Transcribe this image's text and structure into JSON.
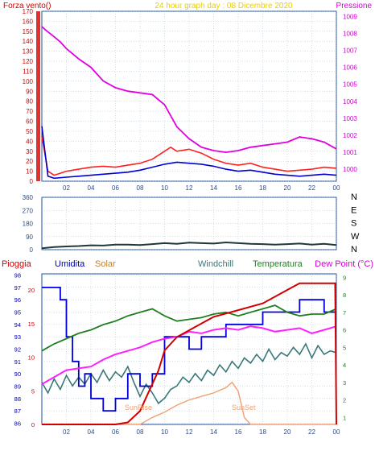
{
  "colors": {
    "frame": "#1e4fa0",
    "grid": "#8ab0c8",
    "wind_gust": "#ff2020",
    "wind_avg": "#0000d0",
    "pressure": "#e000e0",
    "wind_dir": "#203838",
    "humidity": "#0000d8",
    "rain": "#d00000",
    "temperature": "#208020",
    "windchill": "#3a7878",
    "dewpoint": "#ff20ff",
    "solar": "#f0a070",
    "title_yellow": "#e8d000"
  },
  "chart_data": [
    {
      "type": "line",
      "title": "24 hour graph day : 08 Dicembre 2020",
      "left_label": "Forza vento()",
      "right_label": "Pressione",
      "x_ticks": [
        "02",
        "04",
        "06",
        "08",
        "10",
        "12",
        "14",
        "16",
        "18",
        "20",
        "22",
        "00"
      ],
      "left_ticks": [
        "0",
        "10",
        "20",
        "30",
        "40",
        "50",
        "60",
        "70",
        "80",
        "90",
        "100",
        "110",
        "120",
        "130",
        "140",
        "150",
        "160",
        "170"
      ],
      "right_ticks": [
        "1000",
        "1001",
        "1002",
        "1003",
        "1004",
        "1005",
        "1006",
        "1007",
        "1008",
        "1009"
      ],
      "xlim": [
        0,
        24
      ],
      "ylim_left": [
        0,
        170
      ],
      "ylim_right": [
        999.3,
        1009.3
      ],
      "series": [
        {
          "key": "gust",
          "x": [
            0,
            0.5,
            1,
            1.5,
            2,
            3,
            4,
            5,
            6,
            7,
            8,
            9,
            10,
            10.5,
            11,
            12,
            12.5,
            13,
            14,
            15,
            16,
            17,
            18,
            19,
            20,
            21,
            22,
            23,
            24
          ],
          "y": [
            45,
            10,
            6,
            8,
            10,
            12,
            14,
            15,
            14,
            16,
            18,
            22,
            30,
            34,
            30,
            32,
            30,
            28,
            22,
            18,
            16,
            18,
            14,
            12,
            10,
            11,
            12,
            14,
            13
          ]
        },
        {
          "key": "avg",
          "x": [
            0,
            0.5,
            1,
            2,
            3,
            4,
            5,
            6,
            7,
            8,
            9,
            10,
            11,
            12,
            13,
            14,
            15,
            16,
            17,
            18,
            19,
            20,
            21,
            22,
            23,
            24
          ],
          "y": [
            55,
            5,
            3,
            4,
            5,
            6,
            7,
            8,
            9,
            11,
            14,
            17,
            19,
            18,
            17,
            15,
            12,
            10,
            11,
            9,
            7,
            6,
            5,
            6,
            7,
            6
          ]
        },
        {
          "key": "pressure",
          "x": [
            0,
            0.3,
            1,
            1.5,
            2,
            3,
            4,
            5,
            6,
            7,
            8,
            9,
            10,
            11,
            12,
            13,
            14,
            15,
            16,
            17,
            18,
            19,
            20,
            21,
            22,
            23,
            24
          ],
          "y": [
            1008.4,
            1008.2,
            1007.8,
            1007.5,
            1007.1,
            1006.5,
            1006.0,
            1005.2,
            1004.8,
            1004.6,
            1004.5,
            1004.4,
            1003.8,
            1002.5,
            1001.8,
            1001.3,
            1001.1,
            1001.0,
            1001.1,
            1001.3,
            1001.4,
            1001.5,
            1001.6,
            1001.9,
            1001.8,
            1001.6,
            1001.2
          ]
        }
      ]
    },
    {
      "type": "line",
      "left_ticks": [
        "0",
        "90",
        "180",
        "270",
        "360"
      ],
      "right_ticks": [
        "N",
        "W",
        "S",
        "E",
        "N"
      ],
      "xlim": [
        0,
        24
      ],
      "ylim": [
        0,
        360
      ],
      "series": [
        {
          "key": "wind_direction",
          "x": [
            0,
            1,
            2,
            3,
            4,
            5,
            6,
            7,
            8,
            9,
            10,
            11,
            12,
            13,
            14,
            15,
            16,
            17,
            18,
            19,
            20,
            21,
            22,
            23,
            24
          ],
          "y": [
            10,
            18,
            22,
            25,
            30,
            28,
            35,
            35,
            32,
            38,
            45,
            40,
            48,
            45,
            42,
            50,
            45,
            40,
            38,
            35,
            38,
            42,
            35,
            40,
            32
          ]
        }
      ]
    },
    {
      "type": "line",
      "legend": [
        "Pioggia",
        "Umidita",
        "Solar",
        "Windchill",
        "Temperatura",
        "Dew Point (°C)"
      ],
      "left_ticks_humidity": [
        "86",
        "87",
        "88",
        "89",
        "90",
        "91",
        "92",
        "93",
        "94",
        "95",
        "96",
        "97",
        "98"
      ],
      "left_ticks_rain": [
        "0",
        "5",
        "10",
        "15",
        "20"
      ],
      "right_ticks": [
        "1",
        "2",
        "3",
        "4",
        "5",
        "6",
        "7",
        "8",
        "9"
      ],
      "x_ticks": [
        "02",
        "04",
        "06",
        "08",
        "10",
        "12",
        "14",
        "16",
        "18",
        "20",
        "22",
        "00"
      ],
      "annotations": [
        "SunRise",
        "SunSet"
      ],
      "xlim": [
        0,
        24
      ],
      "ylim_humidity": [
        85.9,
        98.1
      ],
      "ylim_temp": [
        0.6,
        9.2
      ],
      "series": [
        {
          "key": "humidity",
          "x": [
            0,
            1,
            1.5,
            2,
            2.5,
            3,
            3.5,
            4,
            4.5,
            5,
            5.5,
            6,
            7,
            8,
            9,
            10,
            11,
            12,
            13,
            14,
            15,
            16,
            17,
            18,
            19,
            20,
            21,
            22,
            23,
            24
          ],
          "y": [
            97,
            97,
            96,
            93,
            91,
            89,
            90,
            88,
            88,
            87,
            87,
            88,
            90,
            89,
            90,
            93,
            93,
            92,
            93,
            93,
            94,
            94,
            94,
            95,
            95,
            95,
            96,
            96,
            95,
            95
          ]
        },
        {
          "key": "rain",
          "x": [
            0,
            6,
            7,
            8,
            8.5,
            9,
            9.5,
            10,
            11,
            12,
            14,
            16,
            18,
            20,
            21,
            22,
            23,
            23.9,
            24
          ],
          "y": [
            0,
            0,
            0.3,
            2,
            4,
            6,
            8,
            11,
            13,
            14,
            16,
            17,
            18,
            20,
            21,
            21,
            21,
            21,
            0
          ]
        },
        {
          "key": "temperature",
          "x": [
            0,
            0.5,
            1,
            2,
            3,
            4,
            5,
            6,
            7,
            8,
            9,
            10,
            11,
            12,
            13,
            14,
            15,
            16,
            17,
            18,
            19,
            20,
            21,
            22,
            23,
            24
          ],
          "y": [
            4.8,
            5.0,
            5.2,
            5.5,
            5.8,
            6.0,
            6.3,
            6.5,
            6.8,
            7.0,
            7.2,
            6.8,
            6.5,
            6.6,
            6.7,
            6.9,
            7.0,
            6.8,
            7.0,
            7.2,
            7.4,
            7.0,
            6.8,
            6.9,
            6.9,
            7.2
          ]
        },
        {
          "key": "dewpoint",
          "x": [
            0,
            1,
            2,
            3,
            4,
            5,
            6,
            7,
            8,
            9,
            10,
            11,
            12,
            13,
            14,
            15,
            16,
            17,
            18,
            19,
            20,
            21,
            22,
            23,
            24
          ],
          "y": [
            2.9,
            3.3,
            3.7,
            3.8,
            3.9,
            4.3,
            4.6,
            4.8,
            5.0,
            5.3,
            5.5,
            5.6,
            5.9,
            5.8,
            6.0,
            6.1,
            6.0,
            6.2,
            6.1,
            5.9,
            6.0,
            6.1,
            5.8,
            6.0,
            6.2
          ]
        },
        {
          "key": "windchill",
          "x": [
            0,
            0.5,
            1,
            1.5,
            2,
            2.5,
            3,
            3.5,
            4,
            4.5,
            5,
            5.5,
            6,
            6.5,
            7,
            7.5,
            8,
            8.5,
            9,
            9.5,
            10,
            10.5,
            11,
            11.5,
            12,
            12.5,
            13,
            13.5,
            14,
            14.5,
            15,
            15.5,
            16,
            16.5,
            17,
            17.5,
            18,
            18.5,
            19,
            19.5,
            20,
            20.5,
            21,
            21.5,
            22,
            22.5,
            23,
            23.5,
            24
          ],
          "y": [
            3.0,
            2.4,
            3.2,
            2.6,
            3.4,
            2.8,
            3.3,
            2.9,
            3.5,
            3.0,
            3.7,
            3.1,
            3.6,
            3.3,
            3.9,
            3.0,
            2.2,
            2.9,
            2.4,
            1.8,
            2.1,
            2.6,
            2.8,
            3.3,
            3.0,
            3.5,
            3.1,
            3.7,
            3.4,
            4.0,
            3.6,
            4.2,
            3.8,
            4.4,
            4.1,
            4.6,
            4.2,
            4.9,
            4.3,
            4.7,
            4.5,
            5.0,
            4.6,
            5.2,
            4.4,
            5.1,
            4.6,
            4.8,
            4.7
          ]
        },
        {
          "key": "solar",
          "x": [
            0,
            7,
            8,
            8.5,
            9,
            10,
            11,
            12,
            13,
            14,
            15,
            15.5,
            16,
            16.5,
            17,
            24
          ],
          "y": [
            0.6,
            0.6,
            0.6,
            0.8,
            1.0,
            1.3,
            1.7,
            2.0,
            2.2,
            2.4,
            2.7,
            3.0,
            2.5,
            1.0,
            0.6,
            0.6
          ]
        }
      ]
    }
  ]
}
